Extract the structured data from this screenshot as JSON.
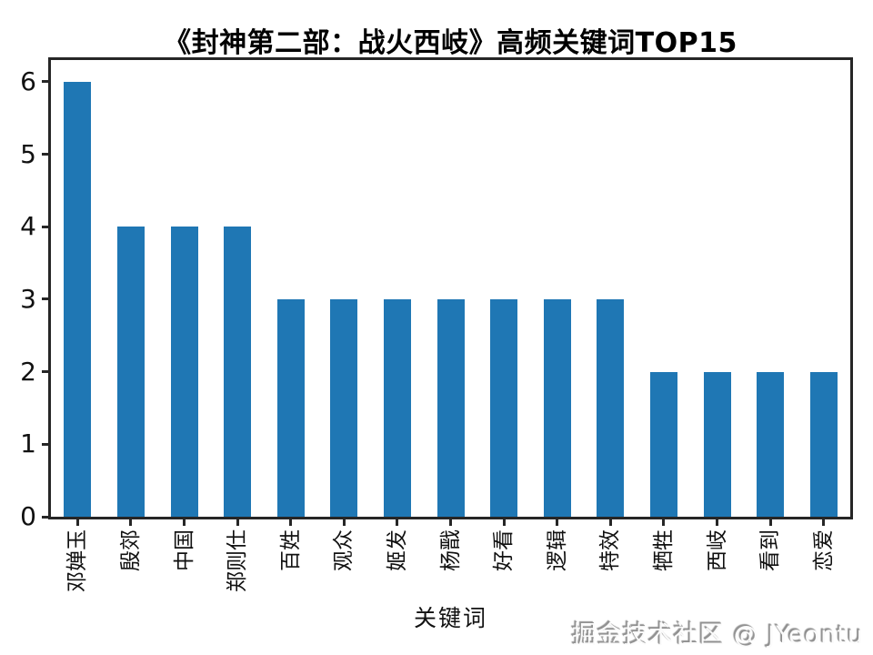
{
  "chart_data": {
    "type": "bar",
    "title": "《封神第二部：战火西岐》高频关键词TOP15",
    "xlabel": "关键词",
    "ylabel": "",
    "categories": [
      "邓婵玉",
      "殷郊",
      "中国",
      "郑则仕",
      "百姓",
      "观众",
      "姬发",
      "杨戬",
      "好看",
      "逻辑",
      "特效",
      "牺牲",
      "西岐",
      "看到",
      "恋爱"
    ],
    "values": [
      6,
      4,
      4,
      4,
      3,
      3,
      3,
      3,
      3,
      3,
      3,
      2,
      2,
      2,
      2
    ],
    "yticks": [
      0,
      1,
      2,
      3,
      4,
      5,
      6
    ],
    "ylim": [
      0,
      6.3
    ],
    "bar_color": "#1f77b4",
    "axis_color": "#262626",
    "grid": false,
    "legend": null,
    "bar_width_ratio": 0.5,
    "tick_label_rotation": 90
  },
  "watermark": {
    "text": "掘金技术社区 @ JYeontu"
  }
}
